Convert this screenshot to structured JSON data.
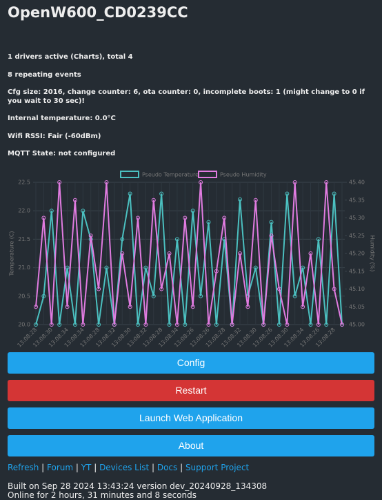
{
  "header": {
    "title": "OpenW600_CD0239CC"
  },
  "info": [
    "1 drivers active (Charts), total 4",
    "8 repeating events",
    "Cfg size: 2016, change counter: 6, ota counter: 0, incomplete boots: 1 (might change to 0 if you wait to 30 sec)!",
    "Internal temperature: 0.0°C",
    "Wifi RSSI: Fair (-60dBm)",
    "MQTT State: not configured"
  ],
  "chart_data": {
    "type": "line",
    "categories": [
      "13:08:28",
      null,
      "13:08:30",
      null,
      "13:08:34",
      null,
      "13:08:34",
      null,
      "13:08:28",
      null,
      "13:08:32",
      null,
      "13:08:30",
      null,
      "13:08:32",
      null,
      "13:08:28",
      null,
      "13:08:34",
      null,
      "13:08:26",
      null,
      "13:08:26",
      null,
      "13:08:28",
      null,
      "13:08:32",
      null,
      "13:08:30",
      null,
      "13:08:26",
      null,
      "13:08:30",
      null,
      "13:08:34",
      null,
      "13:08:26",
      null,
      "13:08:28",
      null
    ],
    "series": [
      {
        "name": "Pseudo Temperature",
        "color": "#4bc0c0",
        "values": [
          20.0,
          20.5,
          22.0,
          20.0,
          21.0,
          20.0,
          22.0,
          21.5,
          20.0,
          21.0,
          20.0,
          21.5,
          22.3,
          20.0,
          21.0,
          20.5,
          22.3,
          20.0,
          21.5,
          20.0,
          22.0,
          20.5,
          21.8,
          20.0,
          21.5,
          20.0,
          22.2,
          20.5,
          21.0,
          20.0,
          21.8,
          20.0,
          22.3,
          20.5,
          21.0,
          20.0,
          21.5,
          20.0,
          22.3,
          20.0
        ]
      },
      {
        "name": "Pseudo Humidity",
        "color": "#e07be0",
        "axis": "y2",
        "values": [
          45.05,
          45.3,
          45.0,
          45.4,
          45.05,
          45.35,
          45.0,
          45.25,
          45.1,
          45.4,
          45.0,
          45.2,
          45.05,
          45.3,
          45.0,
          45.35,
          45.1,
          45.2,
          45.0,
          45.3,
          45.05,
          45.4,
          45.0,
          45.15,
          45.3,
          45.0,
          45.2,
          45.05,
          45.35,
          45.0,
          45.25,
          45.1,
          45.0,
          45.4,
          45.05,
          45.2,
          45.0,
          45.4,
          45.1,
          45.0
        ]
      }
    ],
    "ylabel": "Temperature (C)",
    "y2label": "Humidity (%)",
    "ylim": [
      20,
      22.5
    ],
    "yticks": [
      {
        "value": 20,
        "label": "20.0"
      },
      20.5,
      {
        "value": 21,
        "label": "21.0"
      },
      21.5,
      {
        "value": 22,
        "label": "22.0"
      },
      22.5
    ],
    "y2lim": [
      45,
      45.4
    ],
    "y2ticks": [
      {
        "value": 45,
        "label": "45.00"
      },
      45.05,
      {
        "value": 45.1,
        "label": "45.10"
      },
      45.15,
      {
        "value": 45.2,
        "label": "45.20"
      },
      45.25,
      {
        "value": 45.3,
        "label": "45.30"
      },
      45.35,
      {
        "value": 45.4,
        "label": "45.40"
      }
    ],
    "grid": true,
    "legend": "top"
  },
  "buttons": [
    "Config",
    "Restart",
    "Launch Web Application",
    "About"
  ],
  "links": [
    "Refresh",
    "Forum",
    "YT",
    "Devices List",
    "Docs",
    "Support Project"
  ],
  "footer": [
    "Built on Sep 28 2024 13:43:24 version dev_20240928_134308",
    "Online for 2 hours, 31 minutes and 8 seconds"
  ]
}
